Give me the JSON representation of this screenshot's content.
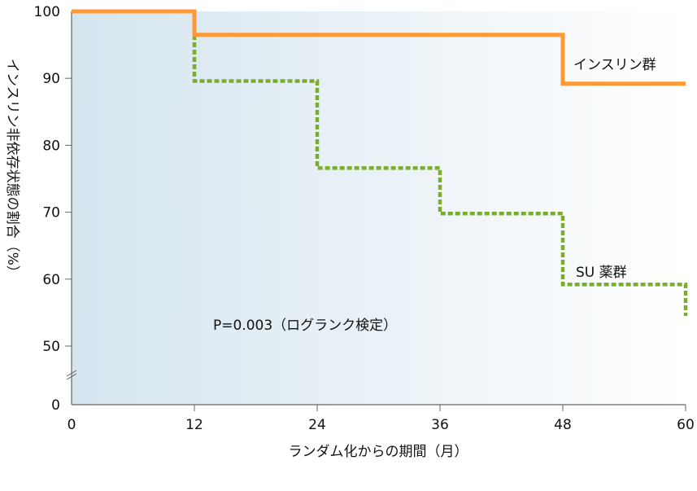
{
  "chart_data": {
    "type": "line",
    "step": true,
    "xlabel": "ランダム化からの期間（月）",
    "ylabel": "インスリン非依存状態の割合（%）",
    "x_ticks": [
      0,
      12,
      24,
      36,
      48,
      60
    ],
    "y_ticks": [
      0,
      50,
      60,
      70,
      80,
      90,
      100
    ],
    "xlim": [
      0,
      60
    ],
    "ylim": [
      0,
      100
    ],
    "y_axis_break": [
      0,
      50
    ],
    "grid": false,
    "annotation": "P=0.003（ログランク検定）",
    "series": [
      {
        "name": "インスリン群",
        "color": "#ff9933",
        "style": "solid",
        "points": [
          [
            0,
            100
          ],
          [
            12,
            96.5
          ],
          [
            48,
            89.2
          ],
          [
            60,
            89.2
          ]
        ]
      },
      {
        "name": "SU 薬群",
        "color": "#7aad2e",
        "style": "dotted",
        "points": [
          [
            0,
            100
          ],
          [
            12,
            89.6
          ],
          [
            24,
            76.6
          ],
          [
            36,
            69.8
          ],
          [
            48,
            59.2
          ],
          [
            60,
            54.5
          ]
        ]
      }
    ],
    "background_gradient": [
      "#d5e5ef",
      "#ffffff"
    ]
  }
}
